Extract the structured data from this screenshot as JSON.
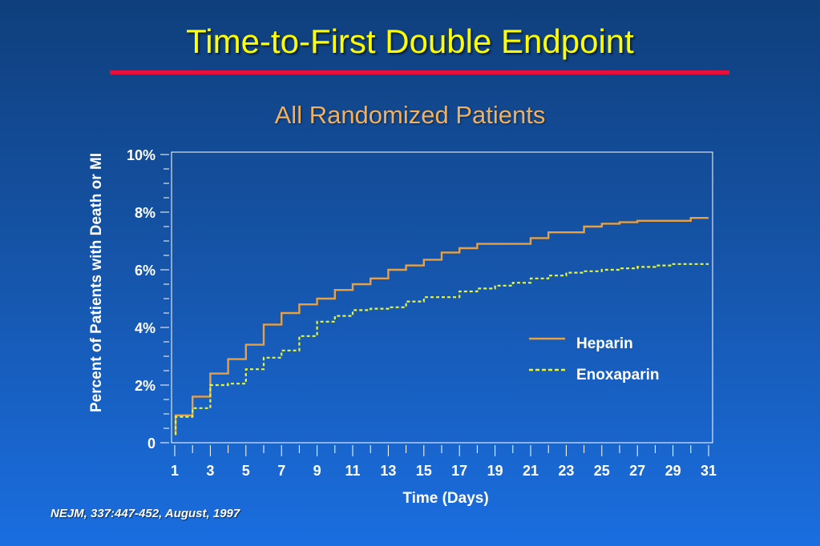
{
  "slide": {
    "title": "Time-to-First Double Endpoint",
    "subtitle": "All Randomized Patients",
    "citation": "NEJM, 337:447-452, August, 1997"
  },
  "colors": {
    "title": "#ffff00",
    "rule": "#e8103a",
    "subtitle": "#f0b060",
    "axis_text": "#ffffff",
    "heparin": "#e8a040",
    "enoxaparin": "#e6f53c"
  },
  "chart_data": {
    "type": "line",
    "title": "All Randomized Patients",
    "xlabel": "Time (Days)",
    "ylabel": "Percent of Patients with Death or MI",
    "xlim": [
      1,
      31
    ],
    "ylim": [
      0,
      10
    ],
    "x_tick_values": [
      1,
      3,
      5,
      7,
      9,
      11,
      13,
      15,
      17,
      19,
      21,
      23,
      25,
      27,
      29,
      31
    ],
    "x_tick_labels": [
      "1",
      "3",
      "5",
      "7",
      "9",
      "11",
      "13",
      "15",
      "17",
      "19",
      "21",
      "23",
      "25",
      "27",
      "29",
      "31"
    ],
    "y_tick_values": [
      0,
      2,
      4,
      6,
      8,
      10
    ],
    "y_tick_labels": [
      "0",
      "2%",
      "4%",
      "6%",
      "8%",
      "10%"
    ],
    "legend_position": "center-right",
    "step": true,
    "series": [
      {
        "name": "Heparin",
        "line_style": "solid",
        "color": "#e8a040",
        "x": [
          1,
          1.05,
          2,
          3,
          4,
          5,
          6,
          7,
          8,
          9,
          10,
          11,
          12,
          13,
          14,
          15,
          16,
          17,
          18,
          19,
          21,
          22,
          24,
          25,
          26,
          27,
          30,
          31
        ],
        "y": [
          0.3,
          0.95,
          1.6,
          2.4,
          2.9,
          3.4,
          4.1,
          4.5,
          4.8,
          5.0,
          5.3,
          5.5,
          5.7,
          6.0,
          6.15,
          6.35,
          6.6,
          6.75,
          6.9,
          6.9,
          7.1,
          7.3,
          7.5,
          7.6,
          7.65,
          7.7,
          7.8,
          7.8
        ]
      },
      {
        "name": "Enoxaparin",
        "line_style": "dashed",
        "color": "#e6f53c",
        "x": [
          1,
          1.05,
          2,
          3,
          4,
          5,
          5.5,
          6,
          7,
          8,
          9,
          10,
          11,
          12,
          13,
          14,
          15,
          16,
          17,
          18,
          19,
          20,
          21,
          22,
          23,
          24,
          25,
          26,
          27,
          28,
          29,
          31
        ],
        "y": [
          0.3,
          0.9,
          1.2,
          2.0,
          2.05,
          2.55,
          2.55,
          2.95,
          3.2,
          3.7,
          4.2,
          4.4,
          4.6,
          4.65,
          4.7,
          4.9,
          5.05,
          5.05,
          5.25,
          5.35,
          5.45,
          5.55,
          5.7,
          5.8,
          5.9,
          5.95,
          6.0,
          6.05,
          6.1,
          6.15,
          6.2,
          6.2
        ]
      }
    ]
  }
}
